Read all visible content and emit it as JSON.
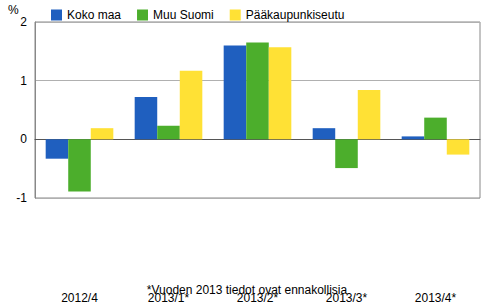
{
  "chart_data": {
    "type": "bar",
    "ylabel": "%",
    "annotation": "*Vuoden 2013 tiedot ovat ennakollisia",
    "categories": [
      "2012/4",
      "2013/1*",
      "2013/2*",
      "2013/3*",
      "2013/4*"
    ],
    "series": [
      {
        "name": "Koko maa",
        "color": "#1f5fbf",
        "values": [
          -0.33,
          0.72,
          1.6,
          0.19,
          0.05
        ]
      },
      {
        "name": "Muu Suomi",
        "color": "#4cae2c",
        "values": [
          -0.89,
          0.23,
          1.65,
          -0.49,
          0.37
        ]
      },
      {
        "name": "Pääkaupunkiseutu",
        "color": "#ffe135",
        "values": [
          0.19,
          1.17,
          1.57,
          0.84,
          -0.26
        ]
      }
    ],
    "ylim": [
      -1,
      2
    ],
    "yticks": [
      -1,
      0,
      1,
      2
    ],
    "grid": true,
    "legend": "top-left"
  }
}
